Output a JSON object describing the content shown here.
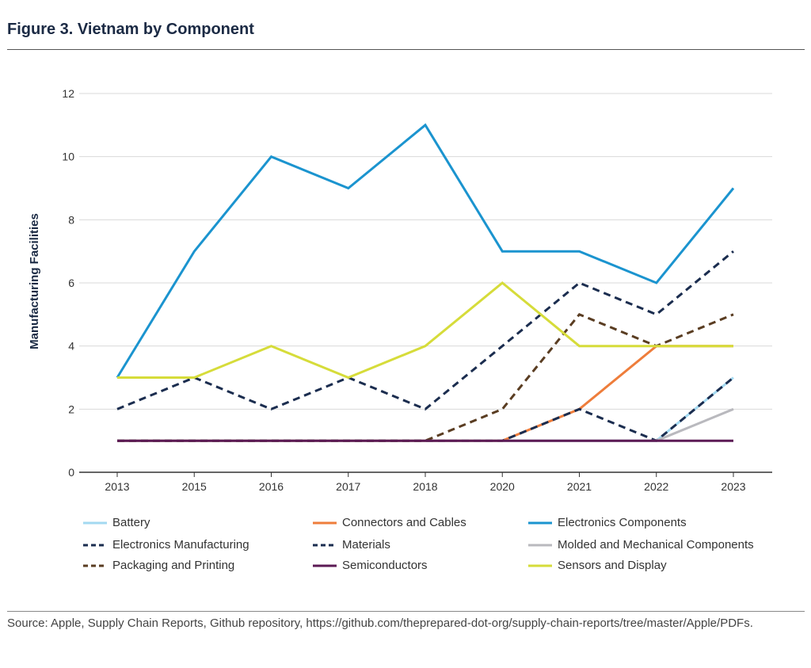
{
  "figure_title": "Figure 3. Vietnam by Component",
  "source_note": "Source: Apple, Supply Chain Reports, Github repository, https://github.com/theprepared-dot-org/supply-chain-reports/tree/master/Apple/PDFs.",
  "chart_data": {
    "type": "line",
    "title": "Figure 3. Vietnam by Component",
    "xlabel": "",
    "ylabel": "Manufacturing Facilities",
    "categories": [
      "2013",
      "2015",
      "2016",
      "2017",
      "2018",
      "2020",
      "2021",
      "2022",
      "2023"
    ],
    "ylim": [
      0,
      12
    ],
    "yticks": [
      0,
      2,
      4,
      6,
      8,
      10,
      12
    ],
    "grid": true,
    "legend_position": "bottom",
    "series": [
      {
        "name": "Battery",
        "color": "#a3d9f1",
        "dash": "solid",
        "values": [
          1,
          1,
          1,
          1,
          1,
          1,
          1,
          1,
          3
        ]
      },
      {
        "name": "Connectors and Cables",
        "color": "#ee7d3b",
        "dash": "solid",
        "values": [
          1,
          1,
          1,
          1,
          1,
          1,
          2,
          4,
          4
        ]
      },
      {
        "name": "Electronics Components",
        "color": "#1b94cf",
        "dash": "solid",
        "values": [
          3,
          7,
          10,
          9,
          11,
          7,
          7,
          6,
          9
        ]
      },
      {
        "name": "Electronics Manufacturing",
        "color": "#1b2d4f",
        "dash": "dashed",
        "values": [
          2,
          3,
          2,
          3,
          2,
          4,
          6,
          5,
          7
        ]
      },
      {
        "name": "Materials",
        "color": "#1b2d4f",
        "dash": "dashed",
        "values": [
          1,
          1,
          1,
          1,
          1,
          1,
          2,
          1,
          3
        ]
      },
      {
        "name": "Molded and Mechanical Components",
        "color": "#b9b9be",
        "dash": "solid",
        "values": [
          1,
          1,
          1,
          1,
          1,
          1,
          1,
          1,
          2
        ]
      },
      {
        "name": "Packaging and Printing",
        "color": "#5a3d22",
        "dash": "dashed",
        "values": [
          1,
          1,
          1,
          1,
          1,
          2,
          5,
          4,
          5
        ]
      },
      {
        "name": "Semiconductors",
        "color": "#5c1a55",
        "dash": "solid",
        "values": [
          1,
          1,
          1,
          1,
          1,
          1,
          1,
          1,
          1
        ]
      },
      {
        "name": "Sensors and Display",
        "color": "#d6dc3a",
        "dash": "solid",
        "values": [
          3,
          3,
          4,
          3,
          4,
          6,
          4,
          4,
          4
        ]
      }
    ]
  }
}
